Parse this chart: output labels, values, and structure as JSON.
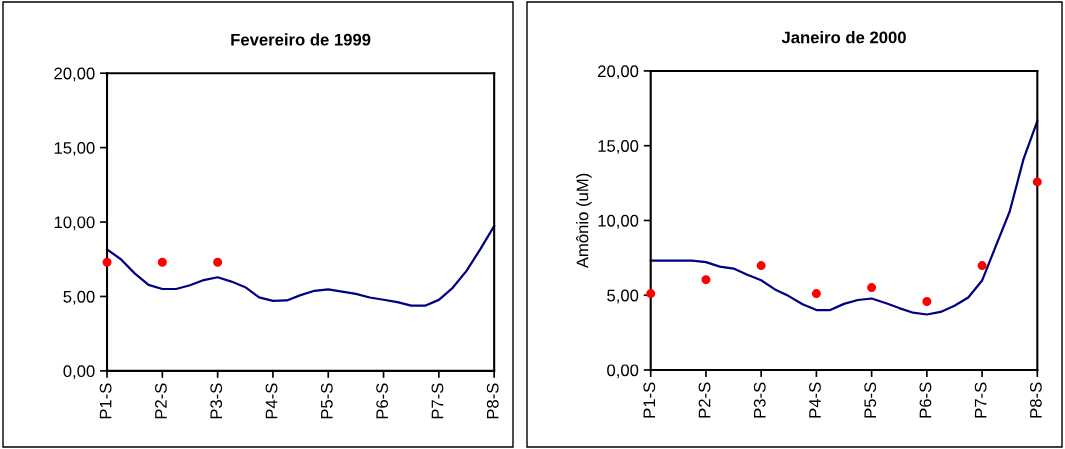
{
  "chart_data": [
    {
      "type": "line",
      "title": "Fevereiro de 1999",
      "categories": [
        "P1-S",
        null,
        null,
        null,
        "P2-S",
        null,
        null,
        null,
        "P3-S",
        null,
        null,
        null,
        "P4-S",
        null,
        null,
        null,
        "P5-S",
        null,
        null,
        null,
        "P6-S",
        null,
        null,
        null,
        "P7-S",
        null,
        null,
        null,
        "P8-S"
      ],
      "ylim": [
        0,
        20
      ],
      "yticks": [
        {
          "value": 0,
          "label": "0,00"
        },
        {
          "value": 5,
          "label": "5,00"
        },
        {
          "value": 10,
          "label": "10,00"
        },
        {
          "value": 15,
          "label": "15,00"
        },
        {
          "value": 20,
          "label": "20,00"
        }
      ],
      "grid": false,
      "series": [
        {
          "color": "#000080",
          "marker": "none",
          "line_style": "solid",
          "values": [
            8.16,
            7.5,
            6.55,
            5.78,
            5.5,
            5.5,
            5.75,
            6.1,
            6.29,
            6.0,
            5.62,
            4.94,
            4.7,
            4.73,
            5.09,
            5.38,
            5.48,
            5.33,
            5.17,
            4.93,
            4.78,
            4.62,
            4.38,
            4.38,
            4.77,
            5.58,
            6.72,
            8.18,
            9.73
          ]
        },
        {
          "type": "scatter",
          "color": "#ff0000",
          "marker": "circle",
          "values": [
            7.3,
            null,
            null,
            null,
            7.3,
            null,
            null,
            null,
            7.3,
            null,
            null,
            null,
            null,
            null,
            null,
            null,
            null,
            null,
            null,
            null,
            null,
            null,
            null,
            null,
            null,
            null,
            null,
            null,
            null
          ]
        }
      ]
    },
    {
      "type": "line",
      "title": "Janeiro de 2000",
      "ylabel": "Amônio (uM)",
      "categories": [
        "P1-S",
        null,
        null,
        null,
        "P2-S",
        null,
        null,
        null,
        "P3-S",
        null,
        null,
        null,
        "P4-S",
        null,
        null,
        null,
        "P5-S",
        null,
        null,
        null,
        "P6-S",
        null,
        null,
        null,
        "P7-S",
        null,
        null,
        null,
        "P8-S"
      ],
      "ylim": [
        0,
        20
      ],
      "yticks": [
        {
          "value": 0,
          "label": "0,00"
        },
        {
          "value": 5,
          "label": "5,00"
        },
        {
          "value": 10,
          "label": "10,00"
        },
        {
          "value": 15,
          "label": "15,00"
        },
        {
          "value": 20,
          "label": "20,00"
        }
      ],
      "grid": false,
      "series": [
        {
          "color": "#000080",
          "marker": "none",
          "line_style": "solid",
          "values": [
            7.31,
            7.31,
            7.31,
            7.31,
            7.21,
            6.91,
            6.78,
            6.37,
            6.0,
            5.39,
            4.94,
            4.4,
            4.01,
            4.01,
            4.42,
            4.68,
            4.78,
            4.48,
            4.14,
            3.83,
            3.71,
            3.88,
            4.3,
            4.85,
            5.98,
            8.3,
            10.6,
            14.1,
            16.64
          ]
        },
        {
          "type": "scatter",
          "color": "#ff0000",
          "marker": "circle",
          "values": [
            5.11,
            null,
            null,
            null,
            6.04,
            null,
            null,
            null,
            6.98,
            null,
            null,
            null,
            5.11,
            null,
            null,
            null,
            5.51,
            null,
            null,
            null,
            4.58,
            null,
            null,
            null,
            6.98,
            null,
            null,
            null,
            12.58
          ]
        }
      ]
    }
  ]
}
